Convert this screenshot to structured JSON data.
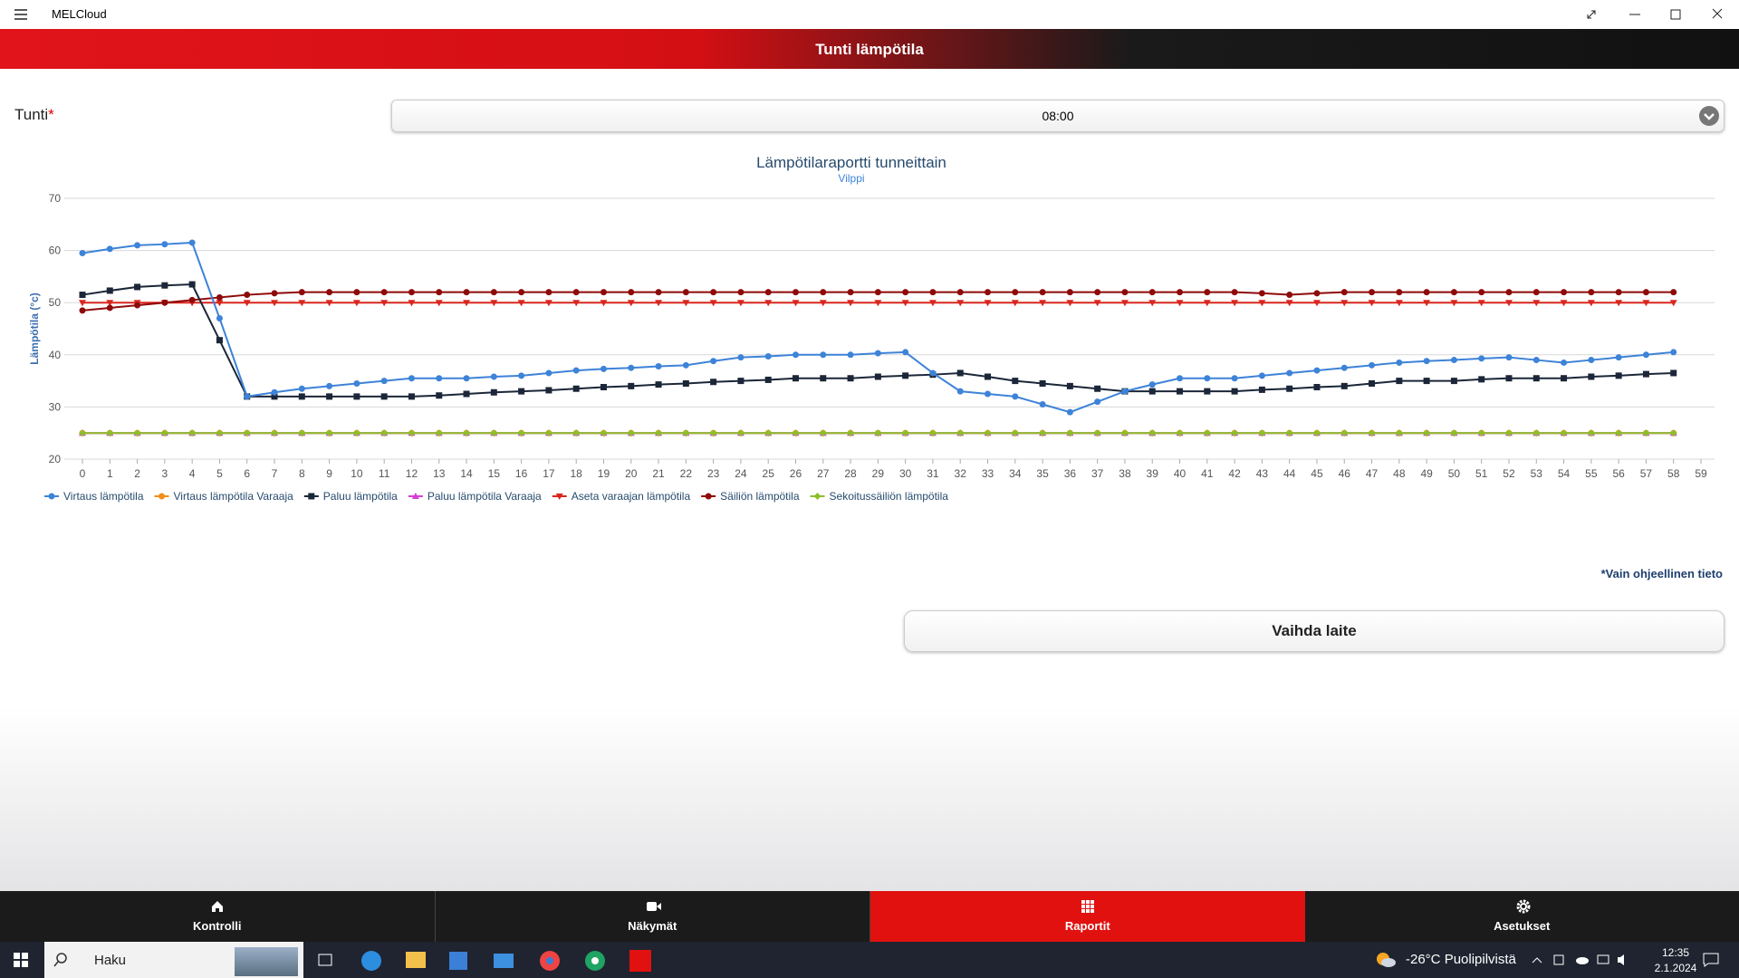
{
  "app": {
    "title": "MELCloud"
  },
  "header": {
    "title": "Tunti lämpötila"
  },
  "form": {
    "label": "Tunti",
    "required": "*",
    "value": "08:00"
  },
  "note": "*Vain ohjeellinen tieto",
  "button": "Vaihda laite",
  "nav": [
    "Kontrolli",
    "Näkymät",
    "Raportit",
    "Asetukset"
  ],
  "taskbar": {
    "search": "Haku",
    "temperature": "-26°C",
    "weather": "Puolipilvistä",
    "time": "12:35",
    "date": "2.1.2024"
  },
  "chart_data": {
    "type": "line",
    "title": "Lämpötilaraportti tunneittain",
    "subtitle": "Vilppi",
    "y_label": "Lämpötila (°c)",
    "x": [
      0,
      1,
      2,
      3,
      4,
      5,
      6,
      7,
      8,
      9,
      10,
      11,
      12,
      13,
      14,
      15,
      16,
      17,
      18,
      19,
      20,
      21,
      22,
      23,
      24,
      25,
      26,
      27,
      28,
      29,
      30,
      31,
      32,
      33,
      34,
      35,
      36,
      37,
      38,
      39,
      40,
      41,
      42,
      43,
      44,
      45,
      46,
      47,
      48,
      49,
      50,
      51,
      52,
      53,
      54,
      55,
      56,
      57,
      58
    ],
    "xlim": [
      0,
      59
    ],
    "xticks": [
      0,
      1,
      2,
      3,
      4,
      5,
      6,
      7,
      8,
      9,
      10,
      11,
      12,
      13,
      14,
      15,
      16,
      17,
      18,
      19,
      20,
      21,
      22,
      23,
      24,
      25,
      26,
      27,
      28,
      29,
      30,
      31,
      32,
      33,
      34,
      35,
      36,
      37,
      38,
      39,
      40,
      41,
      42,
      43,
      44,
      45,
      46,
      47,
      48,
      49,
      50,
      51,
      52,
      53,
      54,
      55,
      56,
      57,
      58,
      59
    ],
    "ylim": [
      20,
      70
    ],
    "yticks": [
      20,
      30,
      40,
      50,
      60,
      70
    ],
    "grid": true,
    "series": [
      {
        "name": "Virtaus lämpötila",
        "color": "#3d83d8",
        "marker": "circle",
        "values": [
          59.5,
          60.3,
          61,
          61.2,
          61.5,
          47,
          32,
          32.8,
          33.5,
          34,
          34.5,
          35,
          35.5,
          35.5,
          35.5,
          35.8,
          36,
          36.5,
          37,
          37.3,
          37.5,
          37.8,
          38,
          38.8,
          39.5,
          39.7,
          40,
          40,
          40,
          40.3,
          40.5,
          36.5,
          33,
          32.5,
          32,
          30.5,
          29,
          31,
          33,
          34.3,
          35.5,
          35.5,
          35.5,
          36,
          36.5,
          37,
          37.5,
          38,
          38.5,
          38.8,
          39,
          39.3,
          39.5,
          39,
          38.5,
          39,
          39.5,
          40,
          40.5
        ]
      },
      {
        "name": "Virtaus lämpötila Varaaja",
        "color": "#f28f1c",
        "marker": "circle",
        "values": [
          25,
          25,
          25,
          25,
          25,
          25,
          25,
          25,
          25,
          25,
          25,
          25,
          25,
          25,
          25,
          25,
          25,
          25,
          25,
          25,
          25,
          25,
          25,
          25,
          25,
          25,
          25,
          25,
          25,
          25,
          25,
          25,
          25,
          25,
          25,
          25,
          25,
          25,
          25,
          25,
          25,
          25,
          25,
          25,
          25,
          25,
          25,
          25,
          25,
          25,
          25,
          25,
          25,
          25,
          25,
          25,
          25,
          25,
          25
        ]
      },
      {
        "name": "Paluu lämpötila",
        "color": "#1b2638",
        "marker": "square",
        "values": [
          51.5,
          52.3,
          53,
          53.3,
          53.5,
          42.8,
          32,
          32,
          32,
          32,
          32,
          32,
          32,
          32.2,
          32.5,
          32.8,
          33,
          33.2,
          33.5,
          33.8,
          34,
          34.3,
          34.5,
          34.8,
          35,
          35.2,
          35.5,
          35.5,
          35.5,
          35.8,
          36,
          36.2,
          36.5,
          35.8,
          35,
          34.5,
          34,
          33.5,
          33,
          33,
          33,
          33,
          33,
          33.3,
          33.5,
          33.8,
          34,
          34.5,
          35,
          35,
          35,
          35.3,
          35.5,
          35.5,
          35.5,
          35.8,
          36,
          36.3,
          36.5
        ]
      },
      {
        "name": "Paluu lämpötila Varaaja",
        "color": "#d63fd6",
        "marker": "triangle",
        "values": [
          25,
          25,
          25,
          25,
          25,
          25,
          25,
          25,
          25,
          25,
          25,
          25,
          25,
          25,
          25,
          25,
          25,
          25,
          25,
          25,
          25,
          25,
          25,
          25,
          25,
          25,
          25,
          25,
          25,
          25,
          25,
          25,
          25,
          25,
          25,
          25,
          25,
          25,
          25,
          25,
          25,
          25,
          25,
          25,
          25,
          25,
          25,
          25,
          25,
          25,
          25,
          25,
          25,
          25,
          25,
          25,
          25,
          25,
          25
        ]
      },
      {
        "name": "Aseta varaajan lämpötila",
        "color": "#d9271f",
        "marker": "triangle-down",
        "values": [
          50,
          50,
          50,
          50,
          50,
          50,
          50,
          50,
          50,
          50,
          50,
          50,
          50,
          50,
          50,
          50,
          50,
          50,
          50,
          50,
          50,
          50,
          50,
          50,
          50,
          50,
          50,
          50,
          50,
          50,
          50,
          50,
          50,
          50,
          50,
          50,
          50,
          50,
          50,
          50,
          50,
          50,
          50,
          50,
          50,
          50,
          50,
          50,
          50,
          50,
          50,
          50,
          50,
          50,
          50,
          50,
          50,
          50,
          50
        ]
      },
      {
        "name": "Säiliön lämpötila",
        "color": "#8e0a0a",
        "marker": "circle",
        "values": [
          48.5,
          49,
          49.5,
          50,
          50.5,
          51,
          51.5,
          51.8,
          52,
          52,
          52,
          52,
          52,
          52,
          52,
          52,
          52,
          52,
          52,
          52,
          52,
          52,
          52,
          52,
          52,
          52,
          52,
          52,
          52,
          52,
          52,
          52,
          52,
          52,
          52,
          52,
          52,
          52,
          52,
          52,
          52,
          52,
          52,
          51.8,
          51.5,
          51.8,
          52,
          52,
          52,
          52,
          52,
          52,
          52,
          52,
          52,
          52,
          52,
          52,
          52
        ]
      },
      {
        "name": "Sekoitussäiliön lämpötila",
        "color": "#8cbf2b",
        "marker": "diamond",
        "values": [
          25,
          25,
          25,
          25,
          25,
          25,
          25,
          25,
          25,
          25,
          25,
          25,
          25,
          25,
          25,
          25,
          25,
          25,
          25,
          25,
          25,
          25,
          25,
          25,
          25,
          25,
          25,
          25,
          25,
          25,
          25,
          25,
          25,
          25,
          25,
          25,
          25,
          25,
          25,
          25,
          25,
          25,
          25,
          25,
          25,
          25,
          25,
          25,
          25,
          25,
          25,
          25,
          25,
          25,
          25,
          25,
          25,
          25,
          25
        ]
      }
    ]
  }
}
